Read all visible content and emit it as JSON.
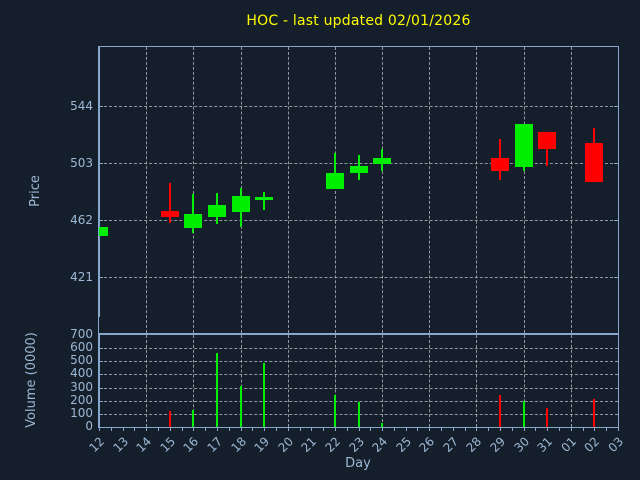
{
  "title": "HOC - last updated 02/01/2026",
  "xlabel": "Day",
  "colors": {
    "background": "#151f2c",
    "axis_border": "#87a7cc",
    "tick_text": "#9db8d4",
    "grid": "#a7aeb8",
    "title_text": "#ffff00",
    "up": "#00ee00",
    "down": "#ff0000"
  },
  "chart_data": [
    {
      "type": "candlestick",
      "ylabel": "Price",
      "yticks": [
        544,
        503,
        462,
        421
      ],
      "ylim": [
        380.5,
        586.5
      ],
      "grid": true,
      "x_categories": [
        "12",
        "13",
        "14",
        "15",
        "16",
        "17",
        "18",
        "19",
        "20",
        "21",
        "22",
        "23",
        "24",
        "25",
        "26",
        "27",
        "28",
        "29",
        "30",
        "31",
        "01",
        "02",
        "03"
      ],
      "grid_day_indices": [
        2,
        4,
        6,
        8,
        10,
        12,
        14,
        16,
        18,
        20
      ],
      "candles": [
        {
          "day": "12",
          "open": 450.5,
          "high": 456.5,
          "low": 450.5,
          "close": 456.5
        },
        {
          "day": "15",
          "open": 468.5,
          "high": 488.5,
          "low": 459.5,
          "close": 464.0
        },
        {
          "day": "16",
          "open": 456.0,
          "high": 480.5,
          "low": 452.5,
          "close": 466.0
        },
        {
          "day": "17",
          "open": 464.0,
          "high": 481.5,
          "low": 459.0,
          "close": 472.5
        },
        {
          "day": "18",
          "open": 468.0,
          "high": 485.0,
          "low": 456.5,
          "close": 479.0
        },
        {
          "day": "19",
          "open": 476.0,
          "high": 482.0,
          "low": 469.0,
          "close": 478.5
        },
        {
          "day": "22",
          "open": 484.5,
          "high": 510.0,
          "low": 484.5,
          "close": 496.0
        },
        {
          "day": "23",
          "open": 496.0,
          "high": 508.5,
          "low": 490.5,
          "close": 501.0
        },
        {
          "day": "24",
          "open": 502.0,
          "high": 513.0,
          "low": 497.0,
          "close": 506.5
        },
        {
          "day": "29",
          "open": 506.5,
          "high": 520.5,
          "low": 490.5,
          "close": 497.0
        },
        {
          "day": "30",
          "open": 500.0,
          "high": 531.0,
          "low": 497.0,
          "close": 531.0
        },
        {
          "day": "31",
          "open": 525.5,
          "high": 525.5,
          "low": 500.5,
          "close": 513.0
        },
        {
          "day": "02",
          "open": 517.5,
          "high": 528.0,
          "low": 489.5,
          "close": 489.5
        }
      ]
    },
    {
      "type": "bar",
      "ylabel": "Volume (0000)",
      "yticks": [
        700,
        600,
        500,
        400,
        300,
        200,
        100,
        0
      ],
      "ylim": [
        0,
        700
      ],
      "grid": true,
      "bars": [
        {
          "day": "15",
          "value": 120,
          "dir": "down"
        },
        {
          "day": "16",
          "value": 130,
          "dir": "up"
        },
        {
          "day": "17",
          "value": 565,
          "dir": "up"
        },
        {
          "day": "18",
          "value": 310,
          "dir": "up"
        },
        {
          "day": "19",
          "value": 490,
          "dir": "up"
        },
        {
          "day": "22",
          "value": 240,
          "dir": "up"
        },
        {
          "day": "23",
          "value": 190,
          "dir": "up"
        },
        {
          "day": "24",
          "value": 27,
          "dir": "up"
        },
        {
          "day": "29",
          "value": 240,
          "dir": "down"
        },
        {
          "day": "30",
          "value": 197,
          "dir": "up"
        },
        {
          "day": "31",
          "value": 142,
          "dir": "down"
        },
        {
          "day": "02",
          "value": 210,
          "dir": "down"
        }
      ]
    }
  ]
}
